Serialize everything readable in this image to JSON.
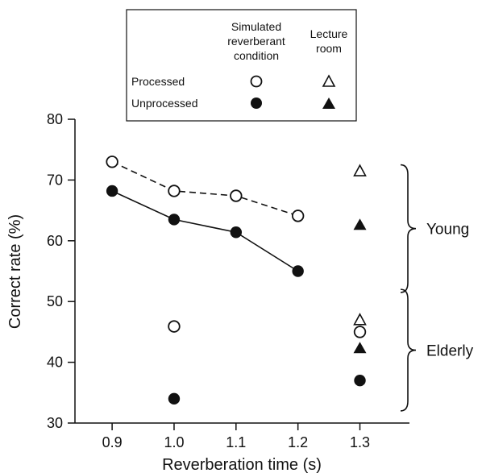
{
  "chart_data": {
    "type": "scatter",
    "xlabel": "Reverberation time (s)",
    "ylabel": "Correct rate (%)",
    "xlim": [
      0.84,
      1.38
    ],
    "ylim": [
      30,
      80
    ],
    "x_ticks": [
      "0.9",
      "1.0",
      "1.1",
      "1.2",
      "1.3"
    ],
    "y_ticks": [
      "30",
      "40",
      "50",
      "60",
      "70",
      "80"
    ],
    "legend": {
      "column_headers": [
        [
          "Simulated",
          "reverberant",
          "condition"
        ],
        [
          "Lecture",
          "room"
        ]
      ],
      "rows": [
        "Processed",
        "Unprocessed"
      ]
    },
    "groups": [
      "Young",
      "Elderly"
    ],
    "series": [
      {
        "name": "Young, Processed, Simulated reverberant condition",
        "marker": "circle-open",
        "line": "dashed",
        "x": [
          0.9,
          1.0,
          1.1,
          1.2
        ],
        "y": [
          73.0,
          68.2,
          67.4,
          64.1
        ]
      },
      {
        "name": "Young, Unprocessed, Simulated reverberant condition",
        "marker": "circle-filled",
        "line": "solid",
        "x": [
          0.9,
          1.0,
          1.1,
          1.2
        ],
        "y": [
          68.2,
          63.5,
          61.4,
          55.0
        ]
      },
      {
        "name": "Elderly, Processed, Simulated reverberant condition",
        "marker": "circle-open",
        "line": "none",
        "x": [
          1.0,
          1.3
        ],
        "y": [
          45.9,
          45.0
        ]
      },
      {
        "name": "Elderly, Unprocessed, Simulated reverberant condition",
        "marker": "circle-filled",
        "line": "none",
        "x": [
          1.0,
          1.3
        ],
        "y": [
          34.0,
          37.0
        ]
      },
      {
        "name": "Young, Processed, Lecture room",
        "marker": "triangle-open",
        "line": "none",
        "x": [
          1.3
        ],
        "y": [
          71.5
        ]
      },
      {
        "name": "Young, Unprocessed, Lecture room",
        "marker": "triangle-filled",
        "line": "none",
        "x": [
          1.3
        ],
        "y": [
          62.6
        ]
      },
      {
        "name": "Elderly, Processed, Lecture room",
        "marker": "triangle-open",
        "line": "none",
        "x": [
          1.3
        ],
        "y": [
          47.0
        ]
      },
      {
        "name": "Elderly, Unprocessed, Lecture room",
        "marker": "triangle-filled",
        "line": "none",
        "x": [
          1.3
        ],
        "y": [
          42.3
        ]
      }
    ],
    "group_ranges": {
      "Young": [
        51.5,
        72.5
      ],
      "Elderly": [
        32.0,
        52.0
      ]
    },
    "grid": false,
    "legend_placement": "top-center"
  }
}
